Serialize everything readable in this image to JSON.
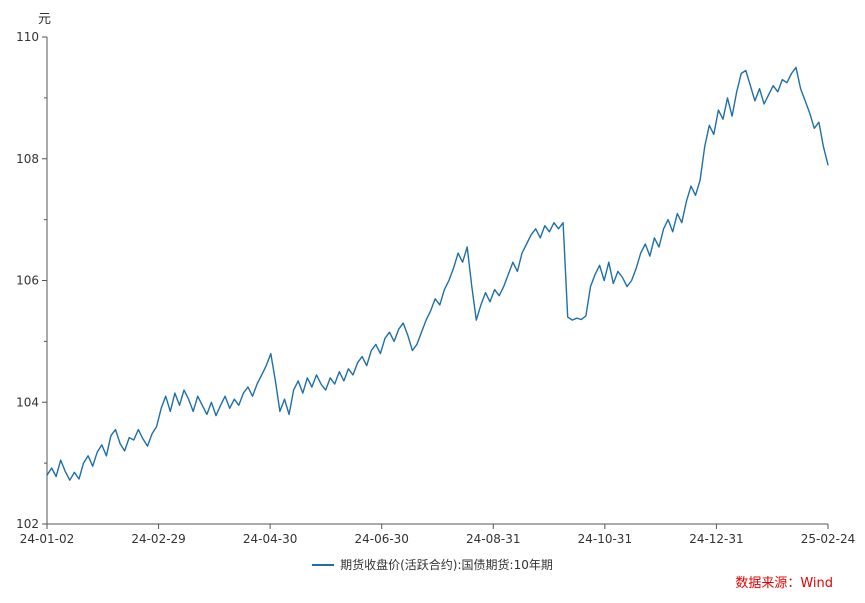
{
  "unit_label": "元",
  "source_label": "数据来源：Wind",
  "legend": {
    "label": "期货收盘价(活跃合约):国债期货:10年期"
  },
  "colors": {
    "line": "#1f6fa8",
    "axis": "#555555",
    "tick_text": "#333333",
    "source_text": "#e60000",
    "background": "#ffffff"
  },
  "chart_data": {
    "type": "line",
    "title": "",
    "xlabel": "",
    "ylabel": "元",
    "ylim": [
      102,
      110
    ],
    "yticks": [
      102,
      104,
      106,
      108,
      110
    ],
    "minor_ytick_step": 1,
    "xticks": [
      "24-01-02",
      "24-02-29",
      "24-04-30",
      "24-06-30",
      "24-08-31",
      "24-10-31",
      "24-12-31",
      "25-02-24"
    ],
    "grid": false,
    "legend_position": "bottom-center",
    "series": [
      {
        "name": "期货收盘价(活跃合约):国债期货:10年期",
        "values": [
          102.8,
          102.92,
          102.78,
          103.05,
          102.86,
          102.72,
          102.85,
          102.74,
          103.0,
          103.12,
          102.95,
          103.18,
          103.3,
          103.12,
          103.45,
          103.55,
          103.32,
          103.2,
          103.42,
          103.38,
          103.55,
          103.4,
          103.28,
          103.48,
          103.6,
          103.9,
          104.1,
          103.85,
          104.15,
          103.95,
          104.2,
          104.05,
          103.85,
          104.1,
          103.95,
          103.8,
          104.0,
          103.78,
          103.95,
          104.1,
          103.9,
          104.05,
          103.95,
          104.15,
          104.25,
          104.1,
          104.3,
          104.45,
          104.6,
          104.8,
          104.35,
          103.85,
          104.05,
          103.8,
          104.2,
          104.35,
          104.15,
          104.4,
          104.25,
          104.45,
          104.3,
          104.2,
          104.4,
          104.3,
          104.5,
          104.35,
          104.55,
          104.45,
          104.65,
          104.75,
          104.6,
          104.85,
          104.95,
          104.8,
          105.05,
          105.15,
          105.0,
          105.2,
          105.3,
          105.1,
          104.85,
          104.95,
          105.15,
          105.35,
          105.5,
          105.7,
          105.6,
          105.85,
          106.0,
          106.2,
          106.45,
          106.3,
          106.55,
          105.9,
          105.35,
          105.6,
          105.8,
          105.65,
          105.85,
          105.75,
          105.9,
          106.1,
          106.3,
          106.15,
          106.45,
          106.6,
          106.75,
          106.85,
          106.7,
          106.9,
          106.8,
          106.95,
          106.85,
          106.95,
          105.4,
          105.35,
          105.38,
          105.36,
          105.42,
          105.9,
          106.1,
          106.25,
          106.0,
          106.3,
          105.95,
          106.15,
          106.05,
          105.9,
          106.0,
          106.2,
          106.45,
          106.6,
          106.4,
          106.7,
          106.55,
          106.85,
          107.0,
          106.8,
          107.1,
          106.95,
          107.3,
          107.55,
          107.4,
          107.65,
          108.2,
          108.55,
          108.4,
          108.8,
          108.65,
          109.0,
          108.7,
          109.1,
          109.4,
          109.45,
          109.2,
          108.95,
          109.15,
          108.9,
          109.05,
          109.2,
          109.1,
          109.3,
          109.25,
          109.4,
          109.5,
          109.15,
          108.95,
          108.75,
          108.5,
          108.6,
          108.2,
          107.9
        ]
      }
    ]
  }
}
